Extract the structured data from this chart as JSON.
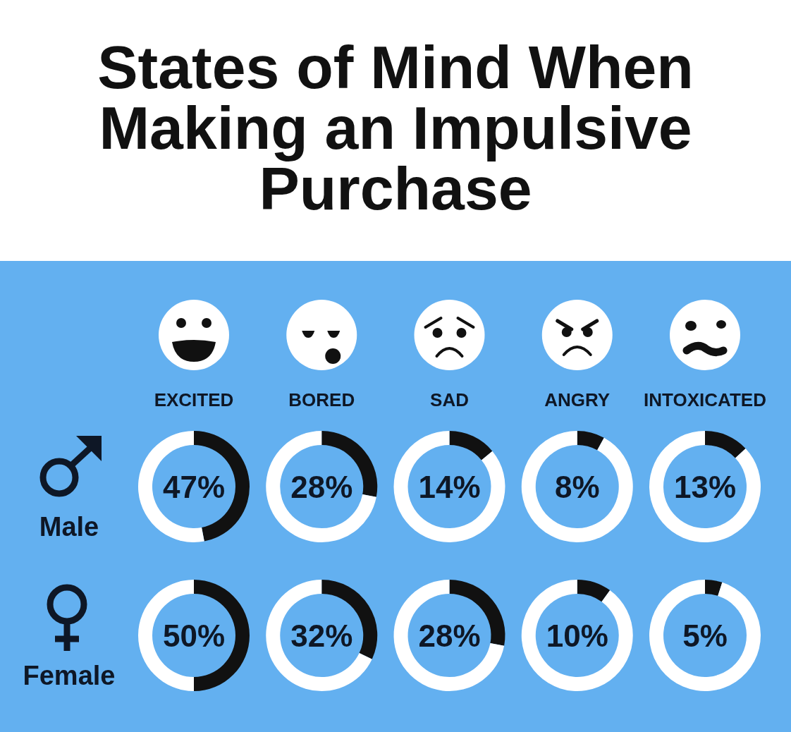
{
  "chart_data": [
    {
      "type": "other",
      "title": "States of Mind When Making an Impulsive Purchase"
    },
    {
      "type": "donut",
      "title": "EXCITED",
      "ylabel": "Male",
      "categories": [
        null,
        null
      ],
      "values": [
        47,
        53
      ],
      "colors": [
        "#111111",
        "#ffffff"
      ],
      "annotations": [
        "47%"
      ]
    },
    {
      "type": "donut",
      "title": "BORED",
      "categories": [
        null,
        null
      ],
      "values": [
        28,
        72
      ],
      "colors": [
        "#111111",
        "#ffffff"
      ],
      "annotations": [
        "28%"
      ]
    },
    {
      "type": "donut",
      "title": "SAD",
      "categories": [
        null,
        null
      ],
      "values": [
        14,
        86
      ],
      "colors": [
        "#111111",
        "#ffffff"
      ],
      "annotations": [
        "14%"
      ]
    },
    {
      "type": "donut",
      "title": "ANGRY",
      "categories": [
        null,
        null
      ],
      "values": [
        8,
        92
      ],
      "colors": [
        "#111111",
        "#ffffff"
      ],
      "annotations": [
        "8%"
      ]
    },
    {
      "type": "donut",
      "title": "INTOXICATED",
      "categories": [
        null,
        null
      ],
      "values": [
        13,
        87
      ],
      "colors": [
        "#111111",
        "#ffffff"
      ],
      "annotations": [
        "13%"
      ]
    },
    {
      "type": "donut",
      "ylabel": "Female",
      "categories": [
        null,
        null
      ],
      "values": [
        50,
        50
      ],
      "colors": [
        "#111111",
        "#ffffff"
      ],
      "annotations": [
        "50%"
      ]
    },
    {
      "type": "donut",
      "categories": [
        null,
        null
      ],
      "values": [
        32,
        68
      ],
      "colors": [
        "#111111",
        "#ffffff"
      ],
      "annotations": [
        "32%"
      ]
    },
    {
      "type": "donut",
      "categories": [
        null,
        null
      ],
      "values": [
        28,
        72
      ],
      "colors": [
        "#111111",
        "#ffffff"
      ],
      "annotations": [
        "28%"
      ]
    },
    {
      "type": "donut",
      "categories": [
        null,
        null
      ],
      "values": [
        10,
        90
      ],
      "colors": [
        "#111111",
        "#ffffff"
      ],
      "annotations": [
        "10%"
      ]
    },
    {
      "type": "donut",
      "categories": [
        null,
        null
      ],
      "values": [
        5,
        95
      ],
      "colors": [
        "#111111",
        "#ffffff"
      ],
      "annotations": [
        "5%"
      ]
    }
  ]
}
